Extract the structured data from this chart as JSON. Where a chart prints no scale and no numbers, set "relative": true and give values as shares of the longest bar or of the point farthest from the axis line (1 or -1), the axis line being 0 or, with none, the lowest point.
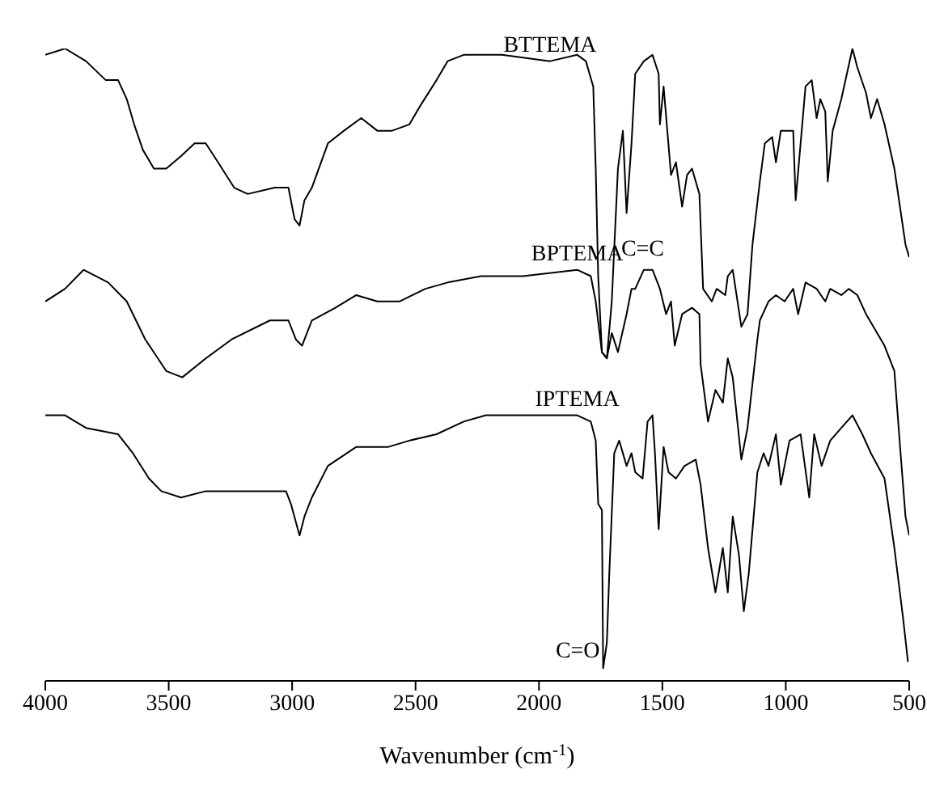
{
  "chart_data": {
    "type": "line",
    "relative": true,
    "xlabel": "Wavenumber (cm$^{-1}$)",
    "xlim": [
      4000,
      500
    ],
    "xticks": [
      4000,
      3500,
      3000,
      2500,
      2000,
      1500,
      1000,
      500
    ],
    "annotations": [
      {
        "text": "C=C",
        "x": 1680,
        "y": 0.685
      },
      {
        "text": "C=O",
        "x": 1740,
        "y": 0.05
      }
    ],
    "series": [
      {
        "name": "BTTEMA",
        "color": "#000000",
        "x": [
          4000,
          3920,
          3835,
          3755,
          3705,
          3670,
          3640,
          3605,
          3560,
          3510,
          3450,
          3395,
          3350,
          3300,
          3235,
          3180,
          3070,
          3015,
          2990,
          2970,
          2950,
          2920,
          2855,
          2790,
          2720,
          2655,
          2595,
          2525,
          2480,
          2415,
          2370,
          2305,
          2215,
          2150,
          1955,
          1845,
          1810,
          1780,
          1770,
          1760,
          1745,
          1725,
          1705,
          1680,
          1660,
          1645,
          1625,
          1610,
          1575,
          1540,
          1515,
          1510,
          1495,
          1465,
          1445,
          1420,
          1400,
          1380,
          1350,
          1335,
          1300,
          1280,
          1245,
          1235,
          1215,
          1180,
          1155,
          1135,
          1105,
          1085,
          1055,
          1040,
          1020,
          970,
          960,
          940,
          920,
          895,
          875,
          860,
          840,
          830,
          810,
          775,
          730,
          710,
          675,
          655,
          630,
          600,
          560,
          515,
          500
        ],
        "values": [
          0.99,
          1.0,
          0.98,
          0.95,
          0.95,
          0.92,
          0.88,
          0.84,
          0.81,
          0.81,
          0.83,
          0.85,
          0.85,
          0.82,
          0.78,
          0.77,
          0.78,
          0.78,
          0.73,
          0.72,
          0.76,
          0.78,
          0.85,
          0.87,
          0.89,
          0.87,
          0.87,
          0.88,
          0.91,
          0.95,
          0.98,
          0.99,
          0.99,
          0.99,
          0.98,
          0.99,
          0.98,
          0.94,
          0.81,
          0.64,
          0.52,
          0.51,
          0.6,
          0.81,
          0.87,
          0.74,
          0.85,
          0.96,
          0.98,
          0.99,
          0.96,
          0.88,
          0.94,
          0.8,
          0.82,
          0.75,
          0.8,
          0.81,
          0.77,
          0.62,
          0.6,
          0.62,
          0.61,
          0.64,
          0.65,
          0.56,
          0.58,
          0.69,
          0.79,
          0.85,
          0.86,
          0.82,
          0.87,
          0.87,
          0.76,
          0.85,
          0.94,
          0.95,
          0.89,
          0.92,
          0.9,
          0.79,
          0.87,
          0.92,
          1.0,
          0.97,
          0.93,
          0.89,
          0.92,
          0.88,
          0.81,
          0.69,
          0.67
        ]
      },
      {
        "name": "BPTEMA",
        "color": "#000000",
        "x": [
          4000,
          3920,
          3845,
          3745,
          3670,
          3595,
          3510,
          3445,
          3350,
          3245,
          3090,
          3015,
          2985,
          2960,
          2920,
          2825,
          2740,
          2655,
          2565,
          2460,
          2370,
          2235,
          2065,
          1845,
          1790,
          1770,
          1745,
          1725,
          1705,
          1680,
          1645,
          1625,
          1610,
          1575,
          1540,
          1510,
          1485,
          1465,
          1450,
          1420,
          1380,
          1350,
          1345,
          1315,
          1285,
          1255,
          1235,
          1215,
          1180,
          1155,
          1135,
          1115,
          1105,
          1070,
          1040,
          1005,
          970,
          950,
          920,
          875,
          840,
          820,
          775,
          745,
          710,
          675,
          645,
          600,
          560,
          535,
          515,
          500
        ],
        "values": [
          0.6,
          0.62,
          0.65,
          0.63,
          0.6,
          0.54,
          0.49,
          0.48,
          0.51,
          0.54,
          0.57,
          0.57,
          0.54,
          0.53,
          0.57,
          0.59,
          0.61,
          0.6,
          0.6,
          0.62,
          0.63,
          0.64,
          0.64,
          0.65,
          0.64,
          0.6,
          0.52,
          0.51,
          0.55,
          0.52,
          0.58,
          0.62,
          0.62,
          0.65,
          0.65,
          0.62,
          0.58,
          0.6,
          0.53,
          0.58,
          0.59,
          0.58,
          0.5,
          0.41,
          0.46,
          0.44,
          0.51,
          0.48,
          0.35,
          0.4,
          0.47,
          0.54,
          0.57,
          0.6,
          0.61,
          0.6,
          0.62,
          0.58,
          0.63,
          0.62,
          0.6,
          0.62,
          0.61,
          0.62,
          0.61,
          0.58,
          0.56,
          0.53,
          0.49,
          0.36,
          0.26,
          0.23
        ]
      },
      {
        "name": "IPTEMA",
        "color": "#000000",
        "x": [
          4000,
          3920,
          3835,
          3705,
          3645,
          3580,
          3530,
          3450,
          3350,
          3180,
          3025,
          3005,
          2970,
          2950,
          2920,
          2855,
          2740,
          2610,
          2525,
          2415,
          2305,
          2215,
          2065,
          1845,
          1790,
          1770,
          1760,
          1745,
          1740,
          1725,
          1715,
          1695,
          1675,
          1645,
          1625,
          1610,
          1580,
          1560,
          1540,
          1530,
          1515,
          1495,
          1475,
          1445,
          1410,
          1365,
          1345,
          1315,
          1285,
          1255,
          1235,
          1215,
          1190,
          1170,
          1150,
          1115,
          1090,
          1070,
          1040,
          1020,
          985,
          940,
          905,
          885,
          855,
          820,
          775,
          730,
          690,
          655,
          600,
          560,
          525,
          505
        ],
        "values": [
          0.42,
          0.42,
          0.4,
          0.39,
          0.36,
          0.32,
          0.3,
          0.29,
          0.3,
          0.3,
          0.3,
          0.28,
          0.23,
          0.26,
          0.29,
          0.34,
          0.37,
          0.37,
          0.38,
          0.39,
          0.41,
          0.42,
          0.42,
          0.42,
          0.41,
          0.38,
          0.28,
          0.27,
          0.02,
          0.06,
          0.17,
          0.36,
          0.38,
          0.34,
          0.36,
          0.33,
          0.32,
          0.41,
          0.42,
          0.36,
          0.24,
          0.37,
          0.33,
          0.32,
          0.34,
          0.35,
          0.31,
          0.21,
          0.14,
          0.21,
          0.14,
          0.26,
          0.2,
          0.11,
          0.17,
          0.33,
          0.36,
          0.34,
          0.39,
          0.31,
          0.38,
          0.39,
          0.29,
          0.39,
          0.34,
          0.38,
          0.4,
          0.42,
          0.39,
          0.36,
          0.32,
          0.21,
          0.1,
          0.03
        ]
      }
    ]
  }
}
